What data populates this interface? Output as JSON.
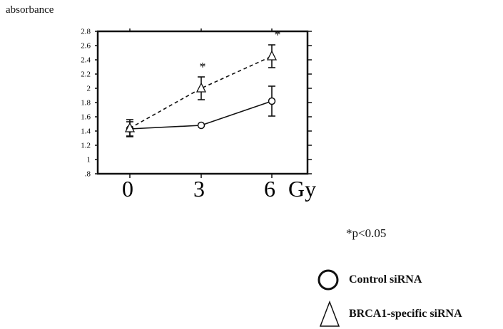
{
  "chart_data": {
    "type": "line",
    "title": "",
    "ylabel": "absorbance",
    "xunit": "Gy",
    "x": [
      0,
      3,
      6
    ],
    "xticks": [
      "0",
      "3",
      "6"
    ],
    "ylim": [
      0.8,
      2.8
    ],
    "yticks": [
      ".8",
      "1",
      "1.2",
      "1.4",
      "1.6",
      "1.8",
      "2",
      "2.2",
      "2.4",
      "2.6",
      "2.8"
    ],
    "grid": false,
    "legend_position": "bottom-right",
    "series": [
      {
        "name": "Control siRNA",
        "marker": "circle",
        "line": "solid",
        "values": [
          1.43,
          1.48,
          1.82
        ],
        "errors": [
          0.1,
          0.02,
          0.21
        ]
      },
      {
        "name": "BRCA1-specific siRNA",
        "marker": "triangle",
        "line": "dashed",
        "values": [
          1.44,
          2.0,
          2.45
        ],
        "errors": [
          0.12,
          0.16,
          0.16
        ]
      }
    ],
    "significance_marker": "*",
    "significance_note": "*p<0.05"
  }
}
